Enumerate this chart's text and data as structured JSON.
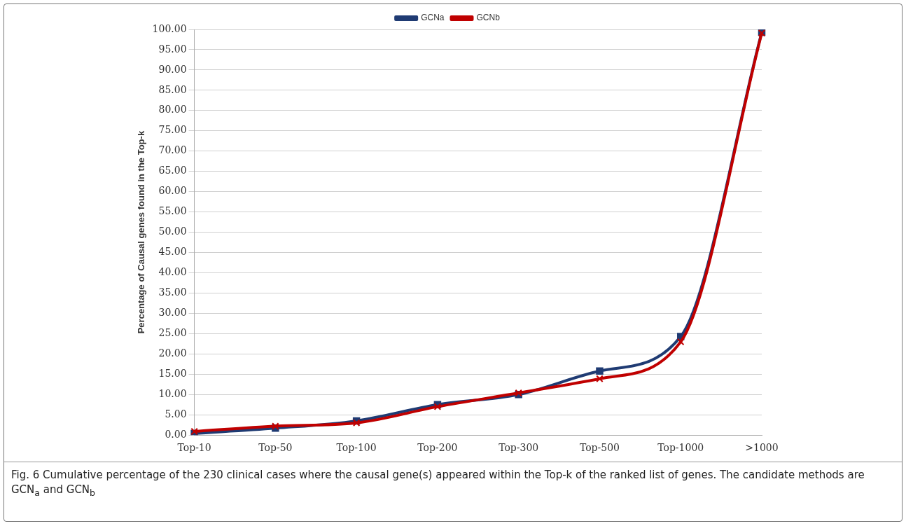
{
  "chart_data": {
    "type": "line",
    "categories": [
      "Top-10",
      "Top-50",
      "Top-100",
      "Top-200",
      "Top-300",
      "Top-500",
      "Top-1000",
      ">1000"
    ],
    "ylabel": "Percentage of Causal genes found in the Top-k",
    "ylim": [
      0,
      100
    ],
    "yticks": [
      {
        "value": 0,
        "label": "0.00"
      },
      {
        "value": 5,
        "label": "5.00"
      },
      {
        "value": 10,
        "label": "10.00"
      },
      {
        "value": 15,
        "label": "15.00"
      },
      {
        "value": 20,
        "label": "20.00"
      },
      {
        "value": 25,
        "label": "25.00"
      },
      {
        "value": 30,
        "label": "30.00"
      },
      {
        "value": 35,
        "label": "35.00"
      },
      {
        "value": 40,
        "label": "40.00"
      },
      {
        "value": 45,
        "label": "45.00"
      },
      {
        "value": 50,
        "label": "50.00"
      },
      {
        "value": 55,
        "label": "55.00"
      },
      {
        "value": 60,
        "label": "60.00"
      },
      {
        "value": 65,
        "label": "65.00"
      },
      {
        "value": 70,
        "label": "70.00"
      },
      {
        "value": 75,
        "label": "75.00"
      },
      {
        "value": 80,
        "label": "80.00"
      },
      {
        "value": 85,
        "label": "85.00"
      },
      {
        "value": 90,
        "label": "90.00"
      },
      {
        "value": 95,
        "label": "95.00"
      },
      {
        "value": 100,
        "label": "100.00"
      }
    ],
    "series": [
      {
        "name": "GCNa",
        "color": "#1f3b73",
        "marker": "square",
        "values": [
          0.4,
          1.7,
          3.5,
          7.5,
          10.0,
          15.8,
          24.3,
          99.3
        ]
      },
      {
        "name": "GCNb",
        "color": "#c00000",
        "marker": "cross",
        "values": [
          0.9,
          2.2,
          3.0,
          7.0,
          10.4,
          13.9,
          23.0,
          99.1
        ]
      }
    ],
    "grid": "y",
    "legend": "top",
    "annotations": [
      "Fig. 6 Cumulative percentage of the 230 clinical cases where the causal gene(s) appeared within the Top-k of the ranked list of genes. The candidate methods are GCN$_{a}$ and GCN$_{b}$"
    ]
  }
}
